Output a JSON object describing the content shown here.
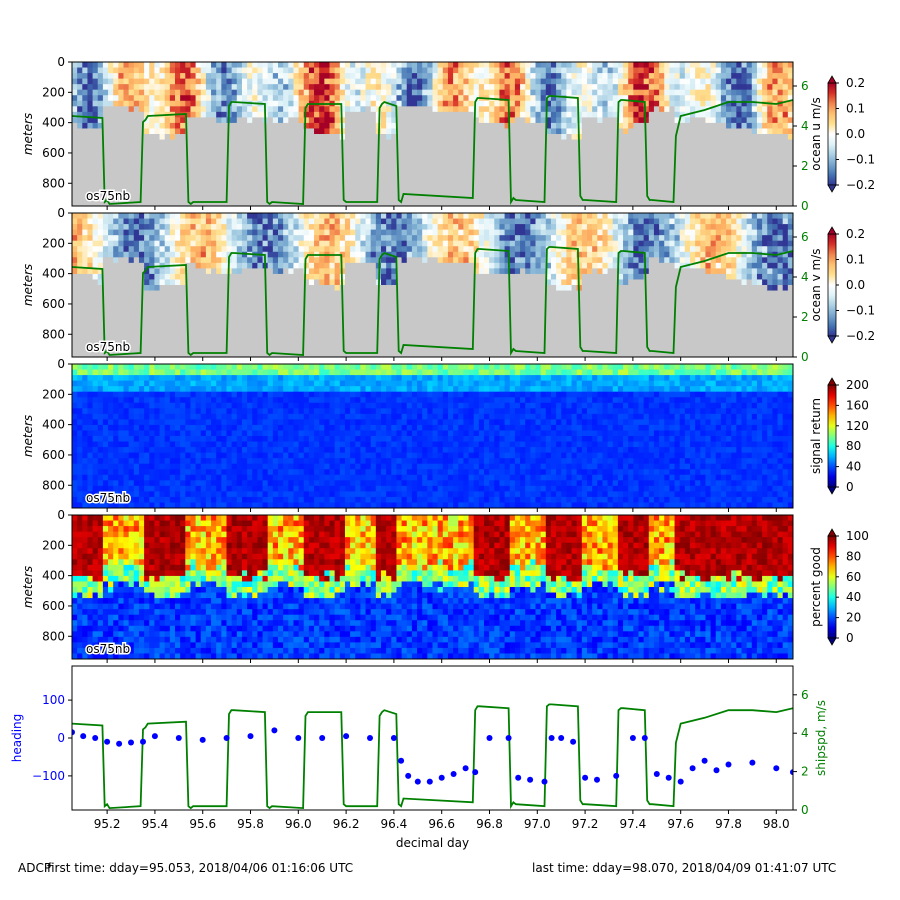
{
  "colors": {
    "ship_speed": "#008000",
    "heading": "#0000ff",
    "bottom_mask": "#c8c8c8"
  },
  "footer": {
    "left_label": "ADCP",
    "first_time": "first time: dday=95.053,  2018/04/06 01:16:06 UTC",
    "last_time": "last time: dday=98.070,  2018/04/09 01:41:07 UTC"
  },
  "chart_data": [
    {
      "type": "heatmap",
      "panel_label": "os75nb",
      "ylabel": "meters",
      "colorbar_label": "ocean u m/s",
      "colorbar_ticks": [
        "0.2",
        "0.1",
        "0.0",
        "−0.1",
        "−0.2"
      ],
      "colormap": "RdYlBu_r",
      "clim": [
        -0.2,
        0.2
      ],
      "y_ticks": [
        "0",
        "200",
        "400",
        "600",
        "800"
      ],
      "ylim": [
        0,
        950
      ],
      "right_axis_label": "",
      "right_axis_ticks": [
        "0",
        "2",
        "4",
        "6"
      ],
      "right_ylim": [
        0,
        7.2
      ],
      "overlay_series": "ship speed m/s"
    },
    {
      "type": "heatmap",
      "panel_label": "os75nb",
      "ylabel": "meters",
      "colorbar_label": "ocean v m/s",
      "colorbar_ticks": [
        "0.2",
        "0.1",
        "0.0",
        "−0.1",
        "−0.2"
      ],
      "colormap": "RdYlBu_r",
      "clim": [
        -0.2,
        0.2
      ],
      "y_ticks": [
        "0",
        "200",
        "400",
        "600",
        "800"
      ],
      "ylim": [
        0,
        950
      ],
      "right_axis_ticks": [
        "0",
        "2",
        "4",
        "6"
      ],
      "right_ylim": [
        0,
        7.2
      ],
      "overlay_series": "ship speed m/s"
    },
    {
      "type": "heatmap",
      "panel_label": "os75nb",
      "ylabel": "meters",
      "colorbar_label": "signal return",
      "colorbar_ticks": [
        "200",
        "160",
        "120",
        "80",
        "40",
        "0"
      ],
      "colormap": "jet",
      "clim": [
        0,
        200
      ],
      "y_ticks": [
        "0",
        "200",
        "400",
        "600",
        "800"
      ],
      "ylim": [
        0,
        950
      ]
    },
    {
      "type": "heatmap",
      "panel_label": "os75nb",
      "ylabel": "meters",
      "colorbar_label": "percent good",
      "colorbar_ticks": [
        "100",
        "80",
        "60",
        "40",
        "20",
        "0"
      ],
      "colormap": "jet",
      "clim": [
        0,
        100
      ],
      "y_ticks": [
        "0",
        "200",
        "400",
        "600",
        "800"
      ],
      "ylim": [
        0,
        950
      ]
    },
    {
      "type": "line",
      "xlabel": "decimal day",
      "x_ticks": [
        "95.2",
        "95.4",
        "95.6",
        "95.8",
        "96.0",
        "96.2",
        "96.4",
        "96.6",
        "96.8",
        "97.0",
        "97.2",
        "97.4",
        "97.6",
        "97.8",
        "98.0"
      ],
      "xlim": [
        95.053,
        98.07
      ],
      "ylabel_left": "heading",
      "yticks_left": [
        "100",
        "0",
        "−100"
      ],
      "ylim_left": [
        -190,
        190
      ],
      "ylabel_right": "shipspd, m/s",
      "yticks_right": [
        "6",
        "4",
        "2",
        "0"
      ],
      "ylim_right": [
        0,
        7.5
      ],
      "series": [
        {
          "name": "shipspd, m/s",
          "x": [
            95.053,
            95.18,
            95.19,
            95.2,
            95.21,
            95.34,
            95.35,
            95.36,
            95.37,
            95.53,
            95.54,
            95.55,
            95.56,
            95.7,
            95.71,
            95.72,
            95.73,
            95.86,
            95.87,
            95.88,
            95.89,
            96.02,
            96.03,
            96.04,
            96.05,
            96.18,
            96.19,
            96.2,
            96.21,
            96.33,
            96.34,
            96.35,
            96.36,
            96.41,
            96.42,
            96.43,
            96.44,
            96.73,
            96.74,
            96.75,
            96.76,
            96.88,
            96.89,
            96.9,
            96.91,
            97.03,
            97.04,
            97.05,
            97.06,
            97.17,
            97.18,
            97.19,
            97.2,
            97.33,
            97.34,
            97.35,
            97.36,
            97.45,
            97.46,
            97.47,
            97.48,
            97.57,
            97.58,
            97.6,
            97.7,
            97.8,
            97.9,
            98.0,
            98.07
          ],
          "y": [
            4.5,
            4.4,
            0.2,
            0.3,
            0.1,
            0.2,
            4.2,
            4.3,
            4.5,
            4.6,
            0.2,
            0.1,
            0.2,
            0.2,
            5.0,
            5.2,
            5.2,
            5.1,
            0.2,
            0.1,
            0.2,
            0.1,
            4.9,
            5.1,
            5.1,
            5.1,
            0.3,
            0.2,
            0.2,
            0.2,
            4.9,
            5.1,
            5.2,
            5.0,
            0.3,
            0.2,
            0.6,
            0.4,
            5.2,
            5.4,
            5.4,
            5.3,
            0.2,
            0.4,
            0.3,
            0.2,
            5.4,
            5.5,
            5.5,
            5.4,
            0.5,
            0.3,
            0.3,
            0.2,
            5.2,
            5.3,
            5.3,
            5.2,
            0.5,
            0.3,
            0.3,
            0.2,
            3.5,
            4.5,
            4.8,
            5.2,
            5.2,
            5.1,
            5.3
          ]
        },
        {
          "name": "heading",
          "x": [
            95.053,
            95.1,
            95.15,
            95.2,
            95.25,
            95.3,
            95.35,
            95.4,
            95.5,
            95.6,
            95.7,
            95.8,
            95.9,
            96.0,
            96.1,
            96.2,
            96.3,
            96.4,
            96.43,
            96.46,
            96.5,
            96.55,
            96.6,
            96.65,
            96.7,
            96.74,
            96.8,
            96.88,
            96.92,
            96.97,
            97.03,
            97.06,
            97.1,
            97.15,
            97.2,
            97.25,
            97.33,
            97.4,
            97.45,
            97.5,
            97.55,
            97.6,
            97.65,
            97.7,
            97.75,
            97.8,
            97.9,
            98.0,
            98.07
          ],
          "y": [
            15,
            5,
            0,
            -10,
            -15,
            -12,
            -10,
            5,
            0,
            -5,
            0,
            5,
            20,
            0,
            0,
            5,
            0,
            0,
            -60,
            -100,
            -115,
            -115,
            -105,
            -95,
            -80,
            -90,
            0,
            0,
            -105,
            -110,
            -115,
            0,
            0,
            -10,
            -105,
            -110,
            -100,
            0,
            0,
            -95,
            -105,
            -115,
            -80,
            -60,
            -85,
            -70,
            -65,
            -80,
            -90
          ]
        }
      ]
    }
  ]
}
